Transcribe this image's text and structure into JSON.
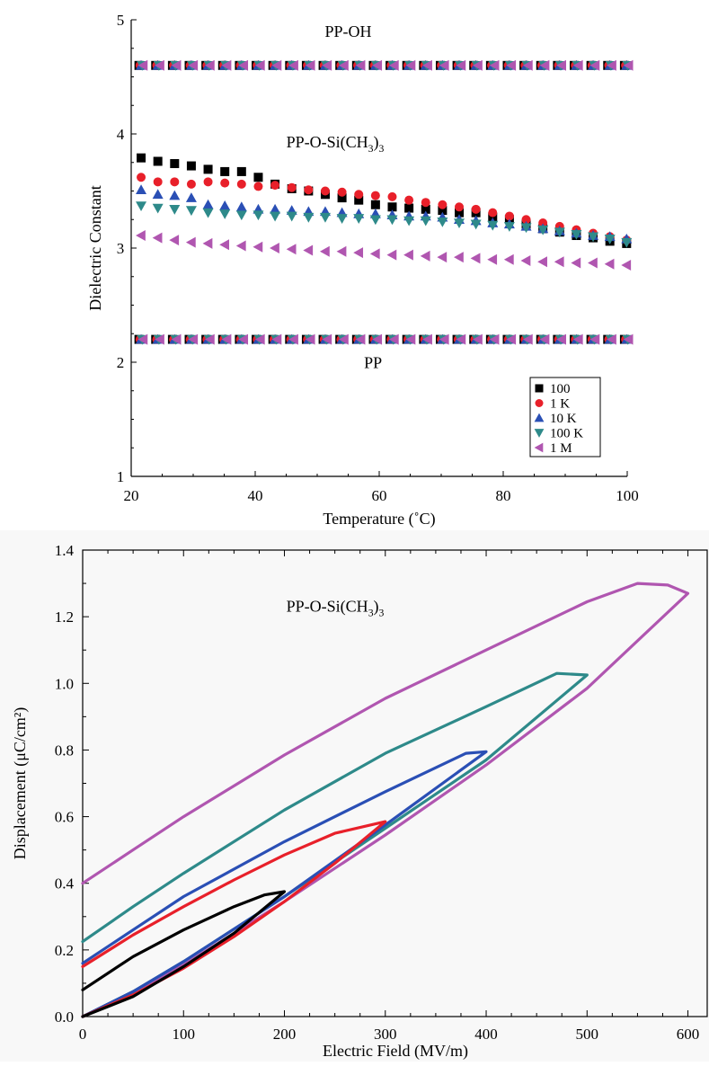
{
  "chart_data": [
    {
      "type": "scatter",
      "xlabel": "Temperature (˚C)",
      "ylabel": "Dielectric Constant",
      "xlim": [
        20,
        100
      ],
      "ylim": [
        1,
        5
      ],
      "xticks": [
        "20",
        "40",
        "60",
        "80",
        "100"
      ],
      "yticks": [
        "1",
        "2",
        "3",
        "4",
        "5"
      ],
      "legend_position": "bottom-right",
      "annotations": [
        {
          "text": "PP-OH",
          "x": 55,
          "y": 4.85
        },
        {
          "text": "PP-O-Si(CH",
          "sub": "3",
          "tail": ")",
          "sub2": "3",
          "x": 54,
          "y": 3.88
        },
        {
          "text": "PP",
          "x": 59,
          "y": 1.95
        }
      ],
      "x": [
        21.6,
        24.3,
        27.0,
        29.7,
        32.4,
        35.1,
        37.8,
        40.5,
        43.2,
        45.9,
        48.6,
        51.3,
        54.0,
        56.7,
        59.4,
        62.1,
        64.8,
        67.5,
        70.2,
        72.9,
        75.6,
        78.3,
        81.0,
        83.7,
        86.4,
        89.1,
        91.8,
        94.5,
        97.2,
        99.9
      ],
      "series": [
        {
          "name": "100",
          "marker": "square",
          "color": "#000000",
          "values": [
            3.79,
            3.76,
            3.74,
            3.72,
            3.69,
            3.67,
            3.67,
            3.62,
            3.56,
            3.52,
            3.5,
            3.47,
            3.44,
            3.42,
            3.38,
            3.36,
            3.35,
            3.34,
            3.33,
            3.31,
            3.31,
            3.27,
            3.25,
            3.21,
            3.17,
            3.14,
            3.11,
            3.09,
            3.06,
            3.04
          ],
          "groups": [
            {
              "label": "PP-OH",
              "values": [
                4.6,
                4.6,
                4.6,
                4.6,
                4.6,
                4.6,
                4.6,
                4.6,
                4.6,
                4.6,
                4.6,
                4.6,
                4.6,
                4.6,
                4.6,
                4.6,
                4.6,
                4.6,
                4.6,
                4.6,
                4.6,
                4.6,
                4.6,
                4.6,
                4.6,
                4.6,
                4.6,
                4.6,
                4.6,
                4.6
              ]
            },
            {
              "label": "PP",
              "values": [
                2.2,
                2.2,
                2.2,
                2.2,
                2.2,
                2.2,
                2.2,
                2.2,
                2.2,
                2.2,
                2.2,
                2.2,
                2.2,
                2.2,
                2.2,
                2.2,
                2.2,
                2.2,
                2.2,
                2.2,
                2.2,
                2.2,
                2.2,
                2.2,
                2.2,
                2.2,
                2.2,
                2.2,
                2.2,
                2.2
              ]
            }
          ]
        },
        {
          "name": "1 K",
          "marker": "circle",
          "color": "#e8202a",
          "values": [
            3.62,
            3.58,
            3.58,
            3.56,
            3.58,
            3.57,
            3.56,
            3.54,
            3.55,
            3.53,
            3.51,
            3.5,
            3.49,
            3.47,
            3.46,
            3.45,
            3.42,
            3.4,
            3.38,
            3.36,
            3.34,
            3.31,
            3.28,
            3.25,
            3.22,
            3.19,
            3.16,
            3.13,
            3.1,
            3.07
          ],
          "groups": [
            {
              "label": "PP-OH",
              "values": [
                4.6,
                4.6,
                4.6,
                4.6,
                4.6,
                4.6,
                4.6,
                4.6,
                4.6,
                4.6,
                4.6,
                4.6,
                4.6,
                4.6,
                4.6,
                4.6,
                4.6,
                4.6,
                4.6,
                4.6,
                4.6,
                4.6,
                4.6,
                4.6,
                4.6,
                4.6,
                4.6,
                4.6,
                4.6,
                4.6
              ]
            },
            {
              "label": "PP",
              "values": [
                2.2,
                2.2,
                2.2,
                2.2,
                2.2,
                2.2,
                2.2,
                2.2,
                2.2,
                2.2,
                2.2,
                2.2,
                2.2,
                2.2,
                2.2,
                2.2,
                2.2,
                2.2,
                2.2,
                2.2,
                2.2,
                2.2,
                2.2,
                2.2,
                2.2,
                2.2,
                2.2,
                2.2,
                2.2,
                2.2
              ]
            }
          ]
        },
        {
          "name": "10 K",
          "marker": "triangle-up",
          "color": "#2a4fb5",
          "values": [
            3.51,
            3.47,
            3.46,
            3.44,
            3.38,
            3.37,
            3.36,
            3.34,
            3.34,
            3.33,
            3.32,
            3.32,
            3.31,
            3.3,
            3.3,
            3.29,
            3.28,
            3.28,
            3.27,
            3.25,
            3.24,
            3.22,
            3.21,
            3.19,
            3.17,
            3.15,
            3.13,
            3.11,
            3.1,
            3.08
          ],
          "groups": [
            {
              "label": "PP-OH",
              "values": [
                4.6,
                4.6,
                4.6,
                4.6,
                4.6,
                4.6,
                4.6,
                4.6,
                4.6,
                4.6,
                4.6,
                4.6,
                4.6,
                4.6,
                4.6,
                4.6,
                4.6,
                4.6,
                4.6,
                4.6,
                4.6,
                4.6,
                4.6,
                4.6,
                4.6,
                4.6,
                4.6,
                4.6,
                4.6,
                4.6
              ]
            },
            {
              "label": "PP",
              "values": [
                2.2,
                2.2,
                2.2,
                2.2,
                2.2,
                2.2,
                2.2,
                2.2,
                2.2,
                2.2,
                2.2,
                2.2,
                2.2,
                2.2,
                2.2,
                2.2,
                2.2,
                2.2,
                2.2,
                2.2,
                2.2,
                2.2,
                2.2,
                2.2,
                2.2,
                2.2,
                2.2,
                2.2,
                2.2,
                2.2
              ]
            }
          ]
        },
        {
          "name": "100 K",
          "marker": "triangle-down",
          "color": "#2e8a8a",
          "values": [
            3.37,
            3.35,
            3.34,
            3.33,
            3.31,
            3.3,
            3.29,
            3.29,
            3.28,
            3.28,
            3.27,
            3.27,
            3.26,
            3.26,
            3.25,
            3.25,
            3.24,
            3.24,
            3.23,
            3.22,
            3.21,
            3.2,
            3.19,
            3.18,
            3.16,
            3.14,
            3.12,
            3.1,
            3.08,
            3.05
          ],
          "groups": [
            {
              "label": "PP-OH",
              "values": [
                4.6,
                4.6,
                4.6,
                4.6,
                4.6,
                4.6,
                4.6,
                4.6,
                4.6,
                4.6,
                4.6,
                4.6,
                4.6,
                4.6,
                4.6,
                4.6,
                4.6,
                4.6,
                4.6,
                4.6,
                4.6,
                4.6,
                4.6,
                4.6,
                4.6,
                4.6,
                4.6,
                4.6,
                4.6,
                4.6
              ]
            },
            {
              "label": "PP",
              "values": [
                2.2,
                2.2,
                2.2,
                2.2,
                2.2,
                2.2,
                2.2,
                2.2,
                2.2,
                2.2,
                2.2,
                2.2,
                2.2,
                2.2,
                2.2,
                2.2,
                2.2,
                2.2,
                2.2,
                2.2,
                2.2,
                2.2,
                2.2,
                2.2,
                2.2,
                2.2,
                2.2,
                2.2,
                2.2,
                2.2
              ]
            }
          ]
        },
        {
          "name": "1 M",
          "marker": "triangle-left",
          "color": "#b056b0",
          "values": [
            3.11,
            3.09,
            3.07,
            3.05,
            3.04,
            3.03,
            3.02,
            3.01,
            3.0,
            2.99,
            2.98,
            2.97,
            2.97,
            2.96,
            2.95,
            2.94,
            2.94,
            2.93,
            2.92,
            2.92,
            2.91,
            2.9,
            2.9,
            2.89,
            2.88,
            2.88,
            2.87,
            2.87,
            2.86,
            2.85
          ],
          "groups": [
            {
              "label": "PP-OH",
              "values": [
                4.6,
                4.6,
                4.6,
                4.6,
                4.6,
                4.6,
                4.6,
                4.6,
                4.6,
                4.6,
                4.6,
                4.6,
                4.6,
                4.6,
                4.6,
                4.6,
                4.6,
                4.6,
                4.6,
                4.6,
                4.6,
                4.6,
                4.6,
                4.6,
                4.6,
                4.6,
                4.6,
                4.6,
                4.6,
                4.6
              ]
            },
            {
              "label": "PP",
              "values": [
                2.2,
                2.2,
                2.2,
                2.2,
                2.2,
                2.2,
                2.2,
                2.2,
                2.2,
                2.2,
                2.2,
                2.2,
                2.2,
                2.2,
                2.2,
                2.2,
                2.2,
                2.2,
                2.2,
                2.2,
                2.2,
                2.2,
                2.2,
                2.2,
                2.2,
                2.2,
                2.2,
                2.2,
                2.2,
                2.2
              ]
            }
          ]
        }
      ]
    },
    {
      "type": "line",
      "xlabel": "Electric Field (MV/m)",
      "ylabel": "Displacement (μC/cm²)",
      "xlim": [
        0,
        620
      ],
      "ylim": [
        0,
        1.4
      ],
      "xticks": [
        "0",
        "100",
        "200",
        "300",
        "400",
        "500",
        "600"
      ],
      "yticks": [
        "0.0",
        "0.2",
        "0.4",
        "0.6",
        "0.8",
        "1.0",
        "1.2",
        "1.4"
      ],
      "annotations": [
        {
          "text": "PP-O-Si(CH",
          "sub": "3",
          "tail": ")",
          "sub2": "3",
          "x": 193,
          "y": 1.22
        }
      ],
      "series": [
        {
          "color": "#000000",
          "upper": [
            [
              0,
              0.08
            ],
            [
              50,
              0.18
            ],
            [
              100,
              0.26
            ],
            [
              150,
              0.33
            ],
            [
              180,
              0.365
            ],
            [
              200,
              0.375
            ]
          ],
          "lower": [
            [
              200,
              0.375
            ],
            [
              150,
              0.25
            ],
            [
              100,
              0.15
            ],
            [
              50,
              0.06
            ],
            [
              0,
              0.0
            ]
          ]
        },
        {
          "color": "#e8202a",
          "upper": [
            [
              0,
              0.15
            ],
            [
              50,
              0.245
            ],
            [
              100,
              0.33
            ],
            [
              150,
              0.41
            ],
            [
              200,
              0.485
            ],
            [
              250,
              0.55
            ],
            [
              300,
              0.585
            ]
          ],
          "lower": [
            [
              300,
              0.585
            ],
            [
              250,
              0.46
            ],
            [
              200,
              0.345
            ],
            [
              150,
              0.24
            ],
            [
              100,
              0.145
            ],
            [
              50,
              0.065
            ],
            [
              0,
              0.0
            ]
          ]
        },
        {
          "color": "#2a4fb5",
          "upper": [
            [
              0,
              0.16
            ],
            [
              50,
              0.26
            ],
            [
              100,
              0.36
            ],
            [
              200,
              0.525
            ],
            [
              300,
              0.675
            ],
            [
              380,
              0.79
            ],
            [
              400,
              0.795
            ]
          ],
          "lower": [
            [
              400,
              0.795
            ],
            [
              300,
              0.575
            ],
            [
              200,
              0.36
            ],
            [
              100,
              0.165
            ],
            [
              50,
              0.075
            ],
            [
              0,
              0.0
            ]
          ]
        },
        {
          "color": "#2e8a8a",
          "upper": [
            [
              0,
              0.225
            ],
            [
              50,
              0.33
            ],
            [
              100,
              0.43
            ],
            [
              200,
              0.62
            ],
            [
              300,
              0.79
            ],
            [
              400,
              0.93
            ],
            [
              470,
              1.03
            ],
            [
              500,
              1.025
            ]
          ],
          "lower": [
            [
              500,
              1.025
            ],
            [
              400,
              0.77
            ],
            [
              300,
              0.565
            ],
            [
              200,
              0.36
            ],
            [
              100,
              0.165
            ],
            [
              50,
              0.075
            ],
            [
              0,
              0.0
            ]
          ]
        },
        {
          "color": "#b056b0",
          "upper": [
            [
              0,
              0.4
            ],
            [
              50,
              0.5
            ],
            [
              100,
              0.6
            ],
            [
              200,
              0.785
            ],
            [
              300,
              0.955
            ],
            [
              400,
              1.1
            ],
            [
              500,
              1.245
            ],
            [
              550,
              1.3
            ],
            [
              580,
              1.295
            ],
            [
              600,
              1.27
            ]
          ],
          "lower": [
            [
              600,
              1.27
            ],
            [
              500,
              0.985
            ],
            [
              400,
              0.755
            ],
            [
              300,
              0.545
            ],
            [
              200,
              0.345
            ],
            [
              100,
              0.155
            ],
            [
              50,
              0.07
            ],
            [
              0,
              0.0
            ]
          ]
        }
      ]
    }
  ]
}
